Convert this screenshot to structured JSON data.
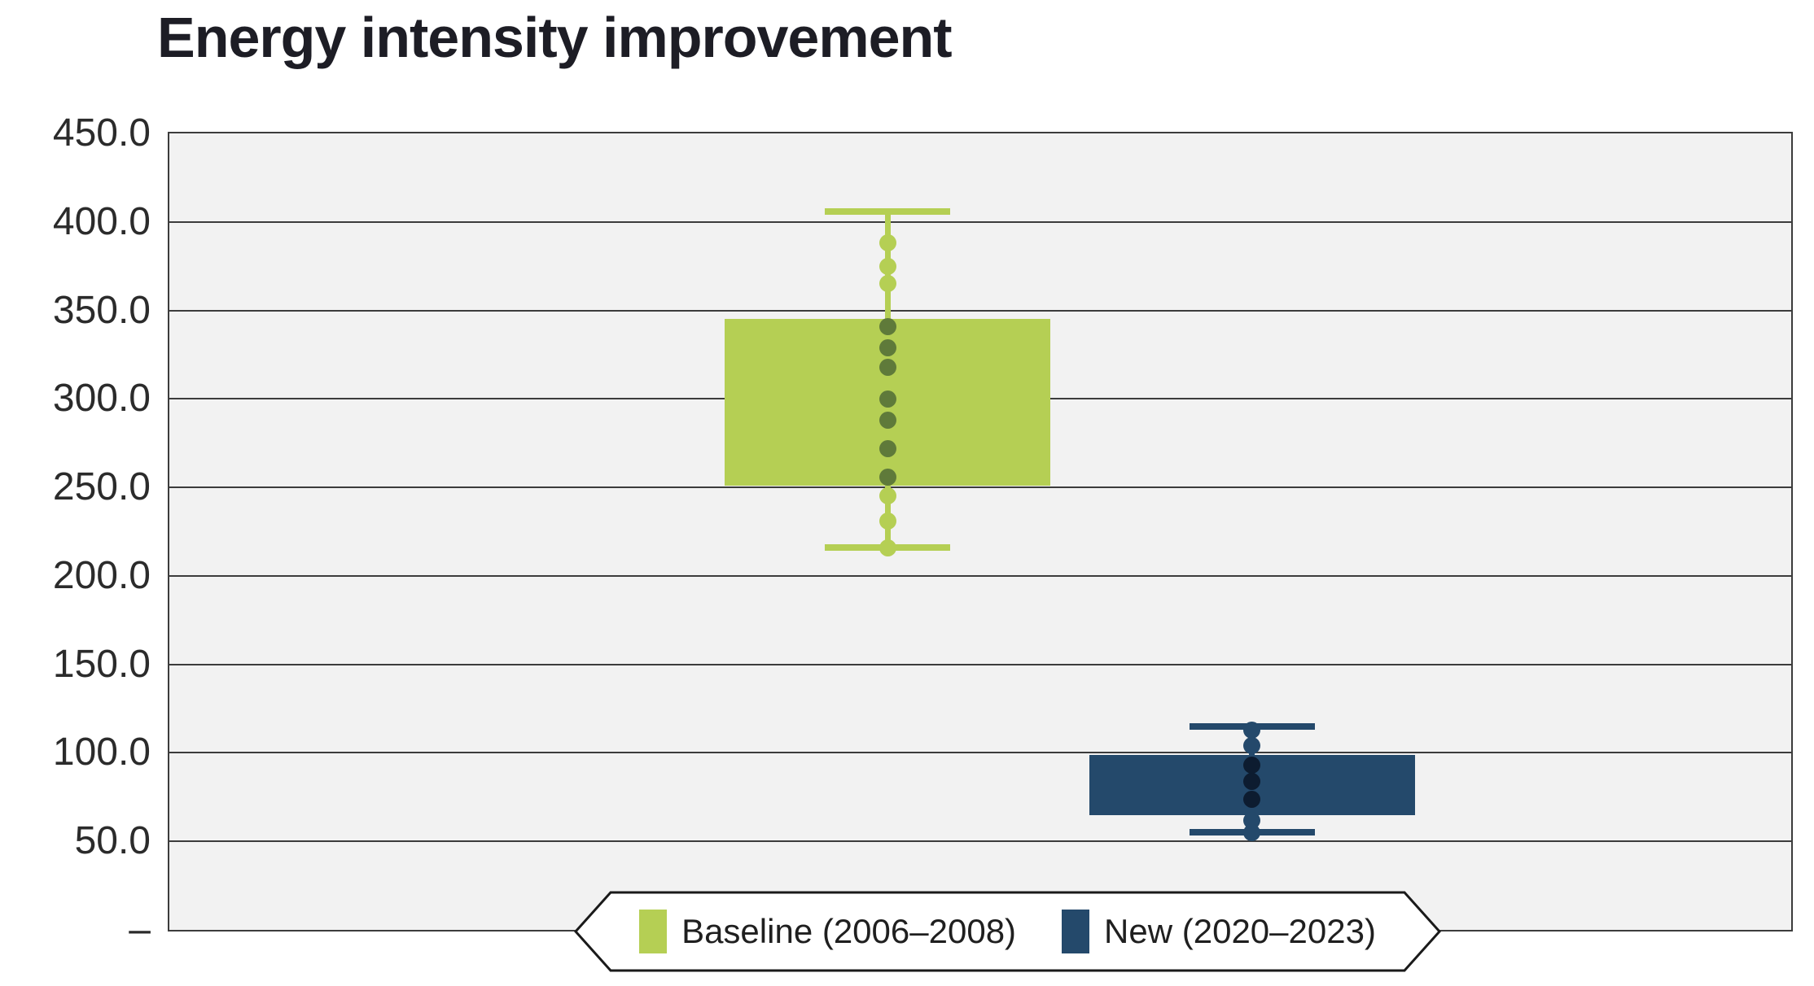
{
  "title": "Energy intensity improvement",
  "chart_data": {
    "type": "box",
    "title": "Energy intensity improvement",
    "y_axis": {
      "min": 0,
      "max": 450,
      "tick_interval": 50,
      "tick_labels": [
        "450.0",
        "400.0",
        "350.0",
        "300.0",
        "250.0",
        "200.0",
        "150.0",
        "100.0",
        "50.0",
        "–"
      ]
    },
    "grid": true,
    "legend_position": "bottom-center",
    "median_line_shown": false,
    "series": [
      {
        "name": "Baseline (2006–2008)",
        "color": "#b5cf54",
        "inner_point_color": "#5f7a3a",
        "box": {
          "q1": 251,
          "q3": 345
        },
        "whiskers": {
          "low": 216,
          "high": 406
        },
        "points": [
          388,
          375,
          365,
          341,
          329,
          318,
          300,
          288,
          272,
          256,
          245,
          231,
          216
        ]
      },
      {
        "name": "New (2020–2023)",
        "color": "#24496b",
        "inner_point_color": "#0d1c30",
        "box": {
          "q1": 65,
          "q3": 99
        },
        "whiskers": {
          "low": 55,
          "high": 115
        },
        "points": [
          113,
          104,
          93,
          84,
          74,
          62,
          55
        ]
      }
    ]
  },
  "legend": {
    "items": [
      {
        "label": "Baseline (2006–2008)",
        "color": "#b5cf54"
      },
      {
        "label": "New (2020–2023)",
        "color": "#24496b"
      }
    ]
  },
  "colors": {
    "page_background": "#ffffff",
    "plot_background": "#f2f2f2",
    "gridline": "#3c3c3c",
    "title_text": "#1d1d25",
    "tick_text": "#2b2b2b",
    "legend_border": "#1a1a1a",
    "legend_text": "#1f1f1f"
  }
}
